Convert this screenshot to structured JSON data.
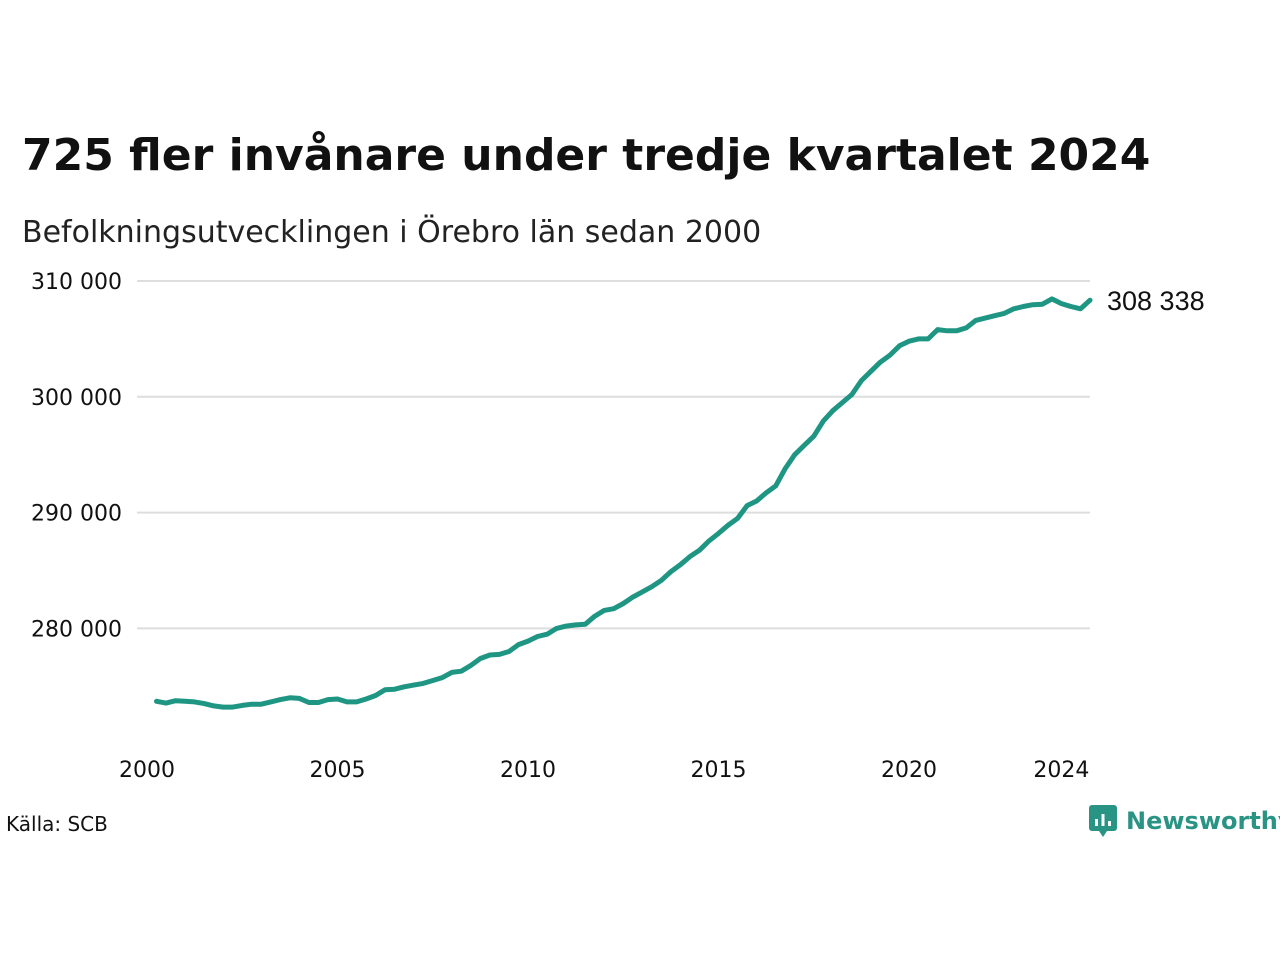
{
  "title": "725 fler invånare under tredje kvartalet 2024",
  "subtitle": "Befolkningsutvecklingen i Örebro län sedan 2000",
  "source": "Källa: SCB",
  "brand": {
    "name": "Newsworthy",
    "icon": "newsworthy-logo-icon",
    "color": "#2a9484"
  },
  "chart_data": {
    "type": "line",
    "title": "725 fler invånare under tredje kvartalet 2024",
    "xlabel": "",
    "ylabel": "",
    "xlim": [
      2000,
      2024.75
    ],
    "ylim": [
      272000,
      310000
    ],
    "x_ticks": [
      2000,
      2005,
      2010,
      2015,
      2020,
      2024
    ],
    "x_tick_labels": [
      "2000",
      "2005",
      "2010",
      "2015",
      "2020",
      "2024"
    ],
    "y_ticks": [
      280000,
      290000,
      300000,
      310000
    ],
    "y_tick_labels": [
      "280 000",
      "290 000",
      "300 000",
      "310 000"
    ],
    "grid": "horizontal",
    "line_color": "#1f9683",
    "end_label": "308 338",
    "series": [
      {
        "x": [
          2000.25,
          2000.5,
          2000.75,
          2001.0,
          2001.25,
          2001.5,
          2001.75,
          2002.0,
          2002.25,
          2002.5,
          2002.75,
          2003.0,
          2003.25,
          2003.5,
          2003.75,
          2004.0,
          2004.25,
          2004.5,
          2004.75,
          2005.0,
          2005.25,
          2005.5,
          2005.75,
          2006.0,
          2006.25,
          2006.5,
          2006.75,
          2007.0,
          2007.25,
          2007.5,
          2007.75,
          2008.0,
          2008.25,
          2008.5,
          2008.75,
          2009.0,
          2009.25,
          2009.5,
          2009.75,
          2010.0,
          2010.25,
          2010.5,
          2010.75,
          2011.0,
          2011.25,
          2011.5,
          2011.75,
          2012.0,
          2012.25,
          2012.5,
          2012.75,
          2013.0,
          2013.25,
          2013.5,
          2013.75,
          2014.0,
          2014.25,
          2014.5,
          2014.75,
          2015.0,
          2015.25,
          2015.5,
          2015.75,
          2016.0,
          2016.25,
          2016.5,
          2016.75,
          2017.0,
          2017.25,
          2017.5,
          2017.75,
          2018.0,
          2018.25,
          2018.5,
          2018.75,
          2019.0,
          2019.25,
          2019.5,
          2019.75,
          2020.0,
          2020.25,
          2020.5,
          2020.75,
          2021.0,
          2021.25,
          2021.5,
          2021.75,
          2022.0,
          2022.25,
          2022.5,
          2022.75,
          2023.0,
          2023.25,
          2023.5,
          2023.75,
          2024.0,
          2024.25,
          2024.5,
          2024.75
        ],
        "values": [
          273700,
          273550,
          273750,
          273700,
          273650,
          273500,
          273300,
          273200,
          273200,
          273350,
          273450,
          273450,
          273650,
          273850,
          274000,
          273950,
          273600,
          273600,
          273850,
          273900,
          273650,
          273650,
          273900,
          274200,
          274700,
          274750,
          274950,
          275100,
          275250,
          275500,
          275750,
          276200,
          276300,
          276800,
          277400,
          277700,
          277750,
          278000,
          278600,
          278900,
          279300,
          279500,
          280000,
          280200,
          280300,
          280350,
          281050,
          281550,
          281700,
          282150,
          282700,
          283150,
          283600,
          284150,
          284900,
          285500,
          286200,
          286750,
          287550,
          288200,
          288900,
          289500,
          290600,
          291000,
          291700,
          292300,
          293800,
          295000,
          295800,
          296600,
          297900,
          298800,
          299500,
          300200,
          301400,
          302200,
          303000,
          303600,
          304400,
          304800,
          305000,
          305000,
          305800,
          305700,
          305700,
          305950,
          306600,
          306800,
          307000,
          307200,
          307600,
          307800,
          307950,
          308000,
          308450,
          308050,
          307800,
          307600,
          308338
        ]
      }
    ]
  }
}
